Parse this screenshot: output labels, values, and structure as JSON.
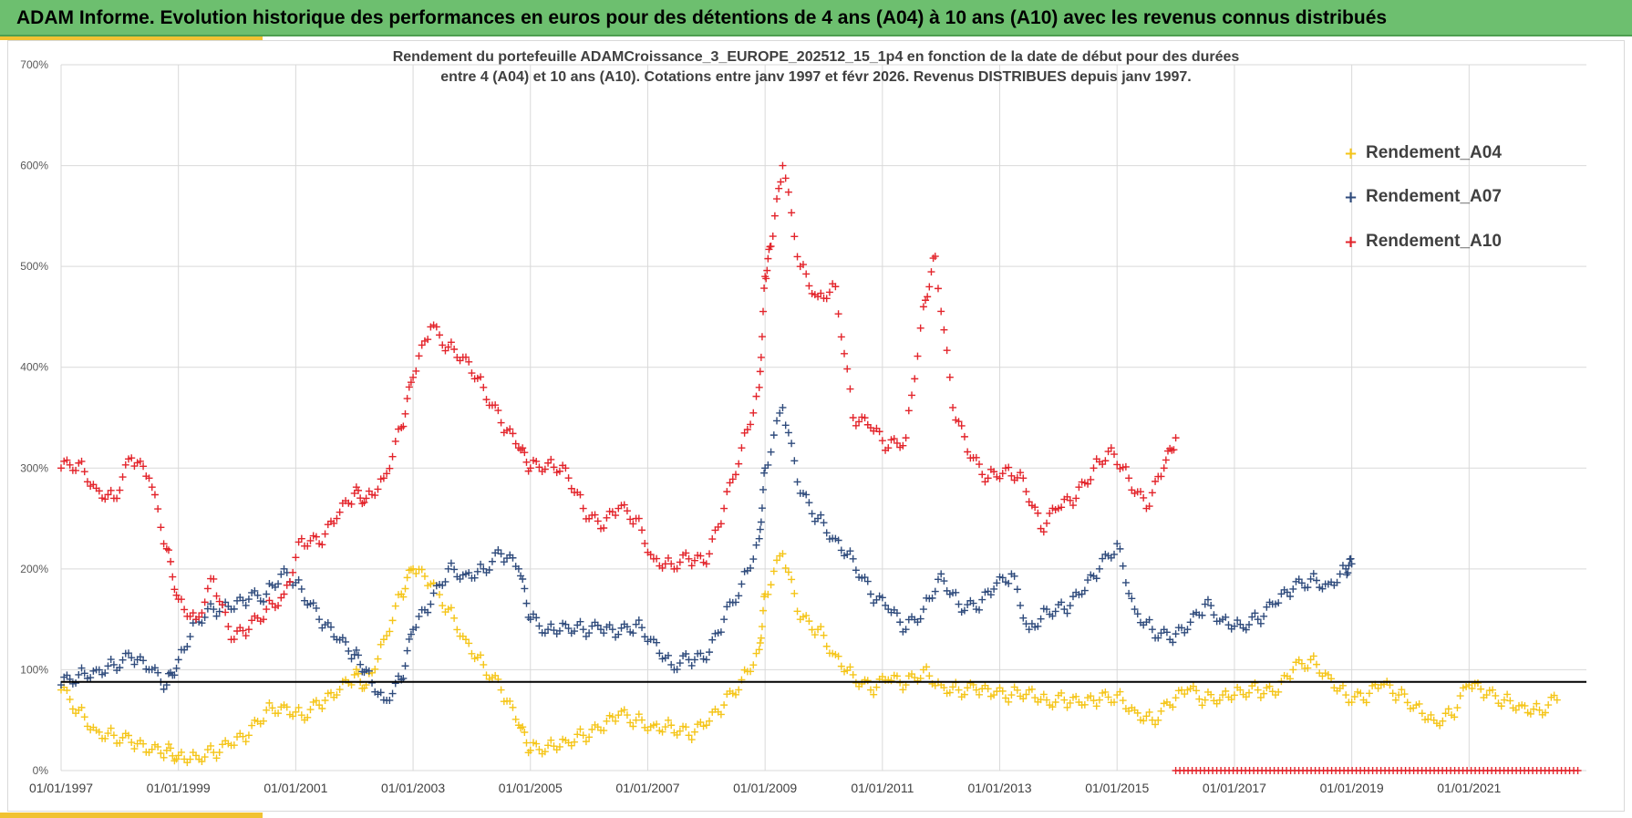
{
  "header": {
    "title": "ADAM Informe. Evolution historique des performances en euros pour des détentions de 4 ans (A04) à 10 ans (A10) avec les revenus connus distribués"
  },
  "colors": {
    "header_bg": "#6dbf6f",
    "accent": "#f1c232",
    "a04": "#f5c518",
    "a07": "#2f4b7c",
    "a10": "#e3242b",
    "reference_line": "#000000"
  },
  "chart_data": {
    "type": "scatter",
    "title_line1": "Rendement du portefeuille ADAMCroissance_3_EUROPE_202512_15_1p4  en fonction de la date de début pour des durées",
    "title_line2": "entre 4 (A04) et 10 ans (A10). Cotations entre janv 1997 et févr 2026. Revenus DISTRIBUES depuis janv 1997.",
    "xlim": [
      1997.0,
      2023.0
    ],
    "ylim": [
      0,
      700
    ],
    "y_ticks": [
      0,
      100,
      200,
      300,
      400,
      500,
      600,
      700
    ],
    "y_tick_labels": [
      "0%",
      "100%",
      "200%",
      "300%",
      "400%",
      "500%",
      "600%",
      "700%"
    ],
    "x_ticks": [
      1997,
      1999,
      2001,
      2003,
      2005,
      2007,
      2009,
      2011,
      2013,
      2015,
      2017,
      2019,
      2021
    ],
    "x_tick_labels": [
      "01/01/1997",
      "01/01/1999",
      "01/01/2001",
      "01/01/2003",
      "01/01/2005",
      "01/01/2007",
      "01/01/2009",
      "01/01/2011",
      "01/01/2013",
      "01/01/2015",
      "01/01/2017",
      "01/01/2019",
      "01/01/2021"
    ],
    "grid": true,
    "legend_position": "top-right",
    "marker": "+",
    "reference_line": 88,
    "series": [
      {
        "name": "Rendement_A04",
        "color": "#f5c518",
        "x": [
          1997.0,
          1997.3,
          1997.6,
          1997.9,
          1998.2,
          1998.5,
          1998.8,
          1999.0,
          1999.3,
          1999.6,
          1999.9,
          2000.2,
          2000.5,
          2000.8,
          2001.1,
          2001.4,
          2001.7,
          2002.0,
          2002.2,
          2002.5,
          2002.8,
          2003.0,
          2003.3,
          2003.6,
          2003.9,
          2004.2,
          2004.5,
          2004.8,
          2005.0,
          2005.3,
          2005.6,
          2005.9,
          2006.2,
          2006.5,
          2006.8,
          2007.1,
          2007.4,
          2007.7,
          2008.0,
          2008.3,
          2008.6,
          2008.9,
          2009.0,
          2009.3,
          2009.6,
          2009.9,
          2010.2,
          2010.5,
          2010.8,
          2011.1,
          2011.4,
          2011.7,
          2012.0,
          2012.3,
          2012.6,
          2012.9,
          2013.2,
          2013.5,
          2013.8,
          2014.1,
          2014.4,
          2014.7,
          2015.0,
          2015.3,
          2015.6,
          2015.9,
          2016.2,
          2016.5,
          2016.8,
          2017.1,
          2017.4,
          2017.7,
          2018.0,
          2018.3,
          2018.6,
          2018.9,
          2019.2,
          2019.5,
          2019.8,
          2020.1,
          2020.4,
          2020.7,
          2021.0,
          2021.3,
          2021.6,
          2021.9,
          2022.2,
          2022.5
        ],
        "values": [
          80,
          60,
          40,
          35,
          28,
          18,
          20,
          15,
          15,
          18,
          25,
          35,
          60,
          65,
          55,
          65,
          75,
          95,
          85,
          130,
          175,
          200,
          185,
          160,
          130,
          105,
          80,
          45,
          20,
          25,
          30,
          35,
          40,
          55,
          50,
          45,
          45,
          35,
          45,
          65,
          90,
          120,
          175,
          215,
          150,
          140,
          115,
          95,
          80,
          90,
          85,
          100,
          85,
          80,
          80,
          75,
          75,
          80,
          70,
          70,
          65,
          70,
          75,
          60,
          50,
          65,
          80,
          70,
          75,
          80,
          80,
          75,
          100,
          110,
          95,
          75,
          70,
          85,
          75,
          65,
          50,
          55,
          85,
          75,
          70,
          65,
          60,
          70
        ]
      },
      {
        "name": "Rendement_A07",
        "color": "#2f4b7c",
        "x": [
          1997.0,
          1997.3,
          1997.6,
          1997.9,
          1998.2,
          1998.5,
          1998.8,
          1999.0,
          1999.3,
          1999.6,
          1999.9,
          2000.2,
          2000.5,
          2000.8,
          2001.1,
          2001.4,
          2001.7,
          2002.0,
          2002.2,
          2002.5,
          2002.8,
          2003.0,
          2003.3,
          2003.6,
          2003.9,
          2004.2,
          2004.5,
          2004.8,
          2005.0,
          2005.3,
          2005.6,
          2005.9,
          2006.2,
          2006.5,
          2006.8,
          2007.1,
          2007.4,
          2007.7,
          2008.0,
          2008.3,
          2008.6,
          2008.9,
          2009.0,
          2009.3,
          2009.6,
          2009.9,
          2010.2,
          2010.5,
          2010.8,
          2011.1,
          2011.4,
          2011.7,
          2012.0,
          2012.3,
          2012.6,
          2012.9,
          2013.2,
          2013.5,
          2013.8,
          2014.1,
          2014.4,
          2014.7,
          2015.0,
          2015.3,
          2015.6,
          2015.9,
          2016.2,
          2016.5,
          2016.8,
          2017.1,
          2017.4,
          2017.7,
          2018.0,
          2018.3,
          2018.6,
          2018.9,
          2019.0
        ],
        "values": [
          85,
          95,
          100,
          105,
          112,
          100,
          85,
          110,
          150,
          160,
          160,
          170,
          175,
          200,
          180,
          150,
          130,
          115,
          100,
          70,
          90,
          140,
          165,
          200,
          195,
          200,
          215,
          200,
          150,
          140,
          145,
          140,
          140,
          135,
          145,
          130,
          105,
          110,
          110,
          150,
          185,
          230,
          300,
          360,
          275,
          250,
          230,
          210,
          175,
          160,
          140,
          160,
          195,
          165,
          160,
          180,
          195,
          140,
          160,
          160,
          175,
          200,
          225,
          160,
          140,
          130,
          140,
          165,
          150,
          145,
          150,
          165,
          180,
          190,
          185,
          200,
          205
        ]
      },
      {
        "name": "Rendement_A10",
        "color": "#e3242b",
        "x": [
          1997.0,
          1997.3,
          1997.6,
          1997.9,
          1998.2,
          1998.5,
          1998.8,
          1999.0,
          1999.3,
          1999.6,
          1999.9,
          2000.2,
          2000.5,
          2000.8,
          2001.1,
          2001.4,
          2001.7,
          2002.0,
          2002.2,
          2002.5,
          2002.8,
          2003.0,
          2003.3,
          2003.6,
          2003.9,
          2004.2,
          2004.5,
          2004.8,
          2005.0,
          2005.3,
          2005.6,
          2005.9,
          2006.2,
          2006.5,
          2006.8,
          2007.1,
          2007.4,
          2007.7,
          2008.0,
          2008.3,
          2008.6,
          2008.9,
          2009.0,
          2009.1,
          2009.3,
          2009.6,
          2009.9,
          2010.2,
          2010.5,
          2010.8,
          2011.1,
          2011.4,
          2011.7,
          2011.9,
          2012.2,
          2012.5,
          2012.8,
          2013.1,
          2013.4,
          2013.7,
          2014.0,
          2014.3,
          2014.6,
          2014.9,
          2015.2,
          2015.5,
          2015.8,
          2016.0
        ],
        "values": [
          300,
          305,
          280,
          270,
          310,
          290,
          220,
          170,
          150,
          190,
          130,
          140,
          160,
          175,
          230,
          225,
          250,
          275,
          270,
          290,
          340,
          390,
          440,
          420,
          410,
          380,
          345,
          320,
          300,
          305,
          300,
          260,
          240,
          260,
          250,
          210,
          205,
          210,
          205,
          260,
          320,
          380,
          490,
          520,
          600,
          500,
          470,
          480,
          350,
          340,
          320,
          330,
          460,
          510,
          360,
          310,
          290,
          300,
          290,
          240,
          260,
          270,
          300,
          320,
          290,
          260,
          300,
          330
        ]
      }
    ],
    "extra_baseline": {
      "name": "Rendement_A10",
      "from": 2016.0,
      "to": 2022.9,
      "value": 0
    }
  }
}
